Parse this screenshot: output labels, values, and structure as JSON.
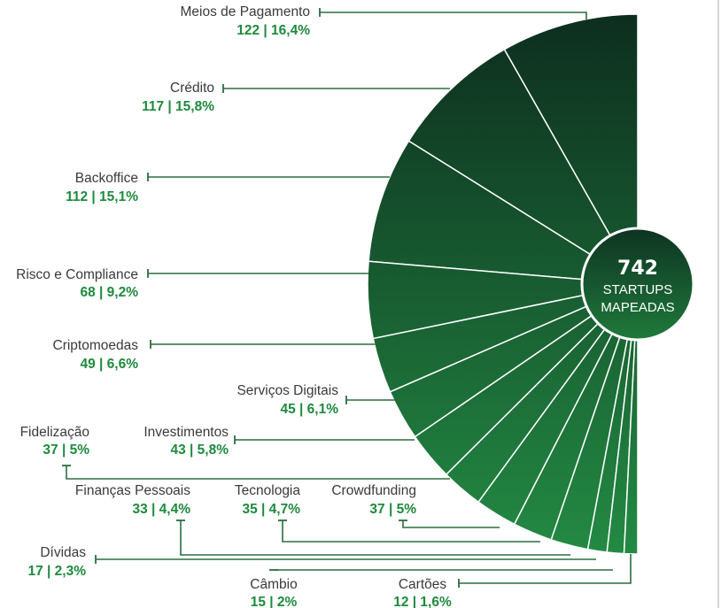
{
  "chart_data": {
    "type": "pie",
    "subtype": "half-radial",
    "total": {
      "value": "742",
      "line1": "STARTUPS",
      "line2": "MAPEADAS"
    },
    "colors": {
      "dark": "#0d2e1f",
      "light": "#238a43",
      "leader": "#2a6e3f",
      "value_text": "#1e8a3c"
    },
    "slices": [
      {
        "name": "Meios de Pagamento",
        "count": 122,
        "pct": 16.4,
        "value_label": "122 | 16,4%"
      },
      {
        "name": "Crédito",
        "count": 117,
        "pct": 15.8,
        "value_label": "117 | 15,8%"
      },
      {
        "name": "Backoffice",
        "count": 112,
        "pct": 15.1,
        "value_label": "112 | 15,1%"
      },
      {
        "name": "Risco e Compliance",
        "count": 68,
        "pct": 9.2,
        "value_label": "68 | 9,2%"
      },
      {
        "name": "Criptomoedas",
        "count": 49,
        "pct": 6.6,
        "value_label": "49 | 6,6%"
      },
      {
        "name": "Serviços Digitais",
        "count": 45,
        "pct": 6.1,
        "value_label": "45 | 6,1%"
      },
      {
        "name": "Investimentos",
        "count": 43,
        "pct": 5.8,
        "value_label": "43 | 5,8%"
      },
      {
        "name": "Fidelização",
        "count": 37,
        "pct": 5.0,
        "value_label": "37 | 5%"
      },
      {
        "name": "Crowdfunding",
        "count": 37,
        "pct": 5.0,
        "value_label": "37 | 5%"
      },
      {
        "name": "Tecnologia",
        "count": 35,
        "pct": 4.7,
        "value_label": "35 | 4,7%"
      },
      {
        "name": "Finanças Pessoais",
        "count": 33,
        "pct": 4.4,
        "value_label": "33 | 4,4%"
      },
      {
        "name": "Dívidas",
        "count": 17,
        "pct": 2.3,
        "value_label": "17 | 2,3%"
      },
      {
        "name": "Câmbio",
        "count": 15,
        "pct": 2.0,
        "value_label": "15 | 2%"
      },
      {
        "name": "Cartões",
        "count": 12,
        "pct": 1.6,
        "value_label": "12 | 1,6%"
      }
    ]
  }
}
